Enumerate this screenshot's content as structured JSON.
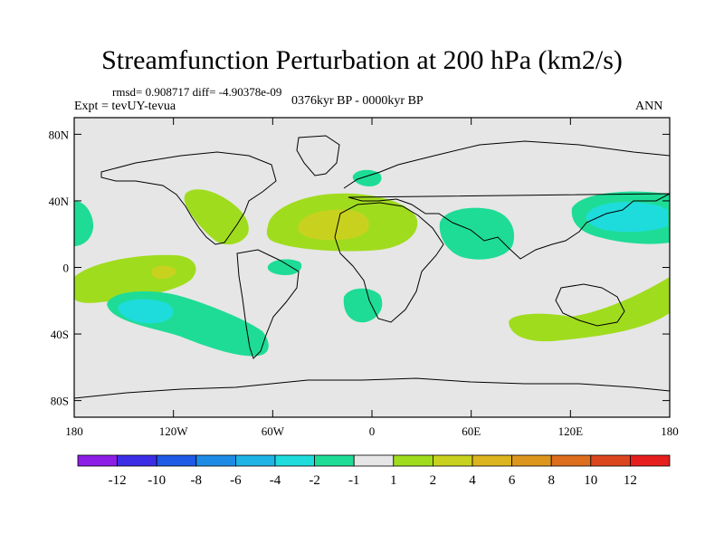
{
  "title": "Streamfunction Perturbation at 200 hPa (km2/s)",
  "stats": "rmsd= 0.908717  diff= -4.90378e-09",
  "experiment": "Expt = tevUY-tevua",
  "period": "0376kyr BP - 0000kyr BP",
  "season": "ANN",
  "map": {
    "projection": "cylindrical-equidistant",
    "lon_range": [
      -180,
      180
    ],
    "lat_range": [
      -90,
      90
    ],
    "x_ticks": [
      {
        "lon": -180,
        "label": "180"
      },
      {
        "lon": -120,
        "label": "120W"
      },
      {
        "lon": -60,
        "label": "60W"
      },
      {
        "lon": 0,
        "label": "0"
      },
      {
        "lon": 60,
        "label": "60E"
      },
      {
        "lon": 120,
        "label": "120E"
      },
      {
        "lon": 180,
        "label": "180"
      }
    ],
    "y_ticks": [
      {
        "lat": 80,
        "label": "80N"
      },
      {
        "lat": 40,
        "label": "40N"
      },
      {
        "lat": 0,
        "label": "0"
      },
      {
        "lat": -40,
        "label": "40S"
      },
      {
        "lat": -80,
        "label": "80S"
      }
    ],
    "background_color": "#e6e6e6",
    "coastline_color": "#000000"
  },
  "colorbar": {
    "labels": [
      "-12",
      "-10",
      "-8",
      "-6",
      "-4",
      "-2",
      "-1",
      "1",
      "2",
      "4",
      "6",
      "8",
      "10",
      "12"
    ],
    "colors": [
      "#8c1ee6",
      "#3c2ee6",
      "#1e5ae6",
      "#1e8ce6",
      "#1eb4e6",
      "#1edcdc",
      "#1edc96",
      "#e6e6e6",
      "#a0dc1e",
      "#c8d21e",
      "#dcb41e",
      "#dc961e",
      "#dc6e1e",
      "#dc461e",
      "#e61e1e"
    ]
  }
}
